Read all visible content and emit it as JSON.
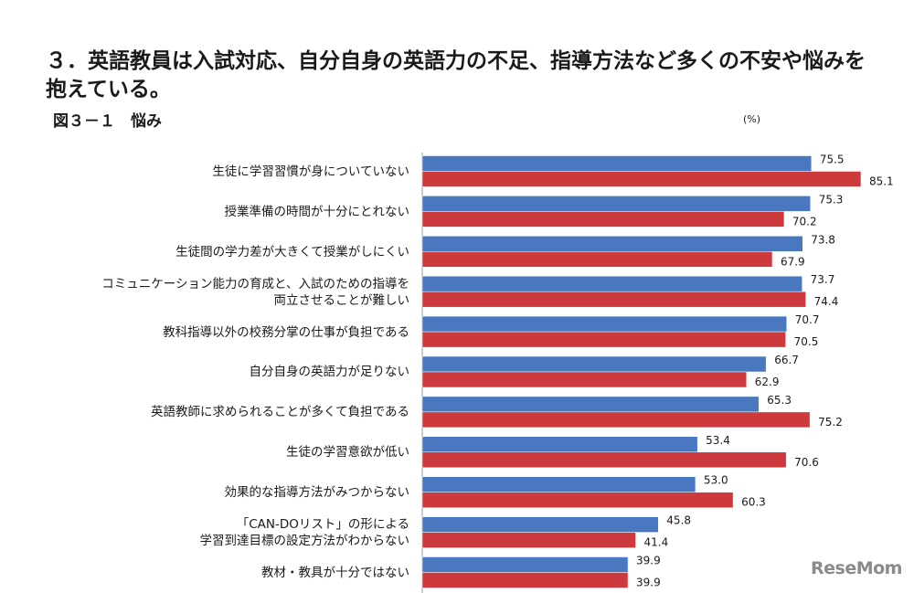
{
  "heading": "３．英語教員は入試対応、自分自身の英語力の不足、指導方法など多くの不安や悩みを抱えている。",
  "figure_label": "図３－１　悩み",
  "unit_label": "(%)",
  "watermark": "ReseMom",
  "colors": {
    "series1": "#4a78c0",
    "series2": "#cc3a3e",
    "axis": "#9a9a9a"
  },
  "chart_data": {
    "type": "bar",
    "orientation": "horizontal",
    "categories": [
      [
        "生徒に学習習慣が身についていない"
      ],
      [
        "授業準備の時間が十分にとれない"
      ],
      [
        "生徒間の学力差が大きくて授業がしにくい"
      ],
      [
        "コミュニケーション能力の育成と、入試のための指導を",
        "両立させることが難しい"
      ],
      [
        "教科指導以外の校務分掌の仕事が負担である"
      ],
      [
        "自分自身の英語力が足りない"
      ],
      [
        "英語教師に求められることが多くて負担である"
      ],
      [
        "生徒の学習意欲が低い"
      ],
      [
        "効果的な指導方法がみつからない"
      ],
      [
        "「CAN-DOリスト」の形による",
        "学習到達目標の設定方法がわからない"
      ],
      [
        "教材・教具が十分ではない"
      ]
    ],
    "series": [
      {
        "values": [
          75.5,
          75.3,
          73.8,
          73.7,
          70.7,
          66.7,
          65.3,
          53.4,
          53.0,
          45.8,
          39.9
        ]
      },
      {
        "values": [
          85.1,
          70.2,
          67.9,
          74.4,
          70.5,
          62.9,
          75.2,
          70.6,
          60.3,
          41.4,
          39.9
        ]
      }
    ],
    "value_labels": [
      [
        "75.5",
        "75.3",
        "73.8",
        "73.7",
        "70.7",
        "66.7",
        "65.3",
        "53.4",
        "53.0",
        "45.8",
        "39.9"
      ],
      [
        "85.1",
        "70.2",
        "67.9",
        "74.4",
        "70.5",
        "62.9",
        "75.2",
        "70.6",
        "60.3",
        "41.4",
        "39.9"
      ]
    ],
    "xlim": [
      0,
      100
    ],
    "grid": false,
    "legend": "none"
  }
}
